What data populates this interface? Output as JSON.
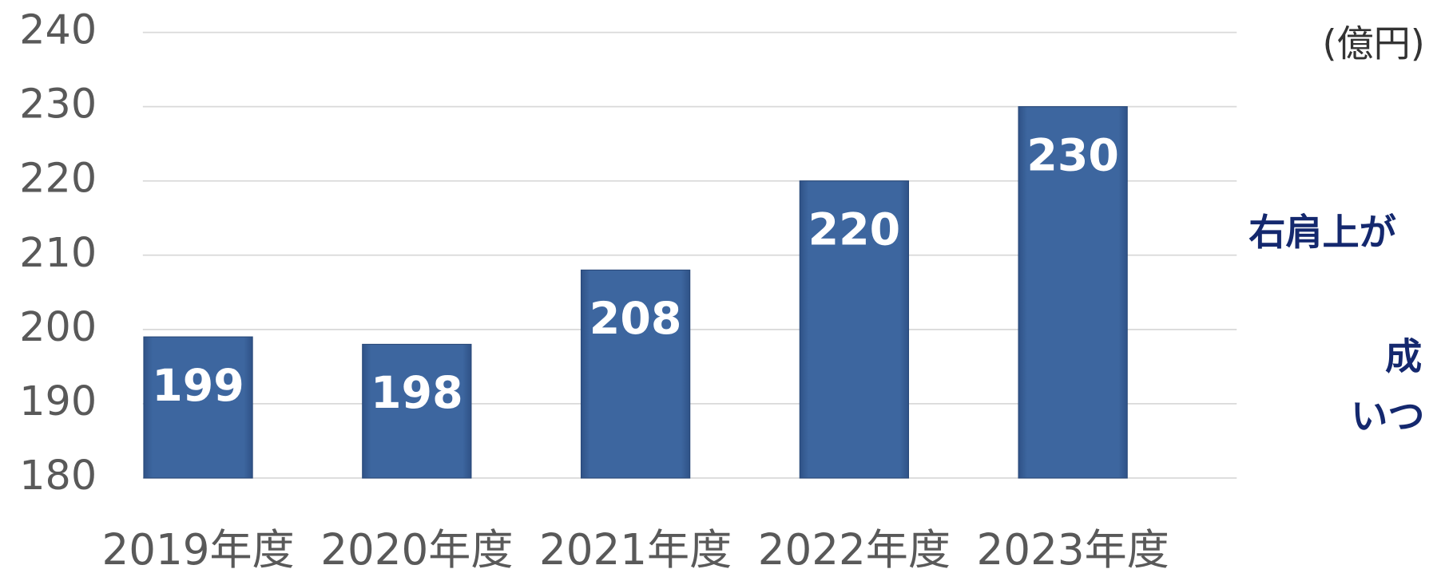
{
  "chart_data": {
    "type": "bar",
    "categories": [
      "2019年度",
      "2020年度",
      "2021年度",
      "2022年度",
      "2023年度"
    ],
    "values": [
      199,
      198,
      208,
      220,
      230
    ],
    "color": "#3b6399",
    "ylim": [
      180,
      240
    ],
    "yticks": [
      180,
      190,
      200,
      210,
      220,
      230,
      240
    ],
    "grid": true,
    "annotations": [
      "(億円)",
      "右肩上が",
      "成",
      "いつ"
    ]
  }
}
